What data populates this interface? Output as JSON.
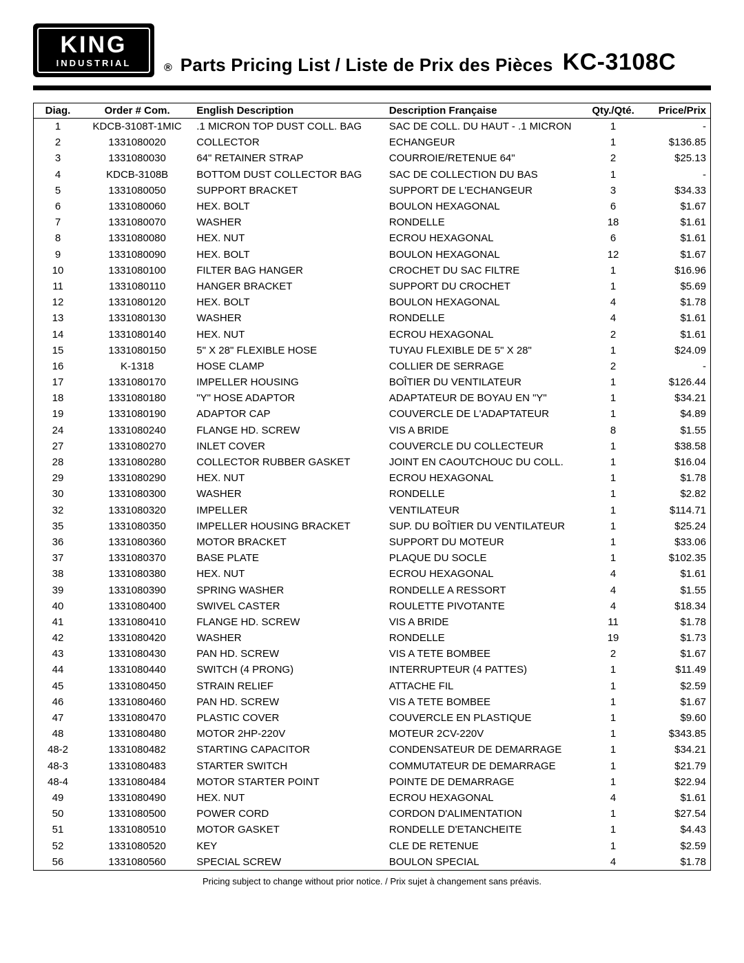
{
  "logo": {
    "line1": "KING",
    "line2": "INDUSTRIAL"
  },
  "header": {
    "registered": "®",
    "title": "Parts Pricing List / Liste de Prix des Pièces",
    "model": "KC-3108C"
  },
  "table": {
    "columns": {
      "diag": "Diag.",
      "order": "Order # Com.",
      "en": "English Description",
      "fr": "Description Française",
      "qty": "Qty./Qté.",
      "price": "Price/Prix"
    },
    "rows": [
      {
        "diag": "1",
        "order": "KDCB-3108T-1MIC",
        "en": ".1 MICRON TOP DUST COLL.  BAG",
        "fr": "SAC DE COLL. DU HAUT - .1 MICRON",
        "qty": "1",
        "price": "-"
      },
      {
        "diag": "2",
        "order": "1331080020",
        "en": "COLLECTOR",
        "fr": "ECHANGEUR",
        "qty": "1",
        "price": "$136.85"
      },
      {
        "diag": "3",
        "order": "1331080030",
        "en": "64\" RETAINER STRAP",
        "fr": "COURROIE/RETENUE 64\"",
        "qty": "2",
        "price": "$25.13"
      },
      {
        "diag": "4",
        "order": "KDCB-3108B",
        "en": "BOTTOM DUST COLLECTOR BAG",
        "fr": "SAC DE COLLECTION DU BAS",
        "qty": "1",
        "price": "-"
      },
      {
        "diag": "5",
        "order": "1331080050",
        "en": "SUPPORT BRACKET",
        "fr": "SUPPORT DE L'ECHANGEUR",
        "qty": "3",
        "price": "$34.33"
      },
      {
        "diag": "6",
        "order": "1331080060",
        "en": "HEX. BOLT",
        "fr": "BOULON HEXAGONAL",
        "qty": "6",
        "price": "$1.67"
      },
      {
        "diag": "7",
        "order": "1331080070",
        "en": "WASHER",
        "fr": "RONDELLE",
        "qty": "18",
        "price": "$1.61"
      },
      {
        "diag": "8",
        "order": "1331080080",
        "en": "HEX. NUT",
        "fr": "ECROU HEXAGONAL",
        "qty": "6",
        "price": "$1.61"
      },
      {
        "diag": "9",
        "order": "1331080090",
        "en": "HEX. BOLT",
        "fr": "BOULON HEXAGONAL",
        "qty": "12",
        "price": "$1.67"
      },
      {
        "diag": "10",
        "order": "1331080100",
        "en": "FILTER BAG HANGER",
        "fr": "CROCHET DU SAC FILTRE",
        "qty": "1",
        "price": "$16.96"
      },
      {
        "diag": "11",
        "order": "1331080110",
        "en": "HANGER BRACKET",
        "fr": "SUPPORT DU CROCHET",
        "qty": "1",
        "price": "$5.69"
      },
      {
        "diag": "12",
        "order": "1331080120",
        "en": "HEX. BOLT",
        "fr": "BOULON HEXAGONAL",
        "qty": "4",
        "price": "$1.78"
      },
      {
        "diag": "13",
        "order": "1331080130",
        "en": "WASHER",
        "fr": "RONDELLE",
        "qty": "4",
        "price": "$1.61"
      },
      {
        "diag": "14",
        "order": "1331080140",
        "en": "HEX. NUT",
        "fr": "ECROU HEXAGONAL",
        "qty": "2",
        "price": "$1.61"
      },
      {
        "diag": "15",
        "order": "1331080150",
        "en": "5\" X 28\" FLEXIBLE HOSE",
        "fr": "TUYAU FLEXIBLE DE 5\" X 28\"",
        "qty": "1",
        "price": "$24.09"
      },
      {
        "diag": "16",
        "order": "K-1318",
        "en": "HOSE CLAMP",
        "fr": "COLLIER DE SERRAGE",
        "qty": "2",
        "price": "-"
      },
      {
        "diag": "17",
        "order": "1331080170",
        "en": "IMPELLER HOUSING",
        "fr": "BOÎTIER DU VENTILATEUR",
        "qty": "1",
        "price": "$126.44"
      },
      {
        "diag": "18",
        "order": "1331080180",
        "en": "\"Y\" HOSE ADAPTOR",
        "fr": "ADAPTATEUR DE BOYAU EN \"Y\"",
        "qty": "1",
        "price": "$34.21"
      },
      {
        "diag": "19",
        "order": "1331080190",
        "en": "ADAPTOR CAP",
        "fr": "COUVERCLE DE L'ADAPTATEUR",
        "qty": "1",
        "price": "$4.89"
      },
      {
        "diag": "24",
        "order": "1331080240",
        "en": "FLANGE HD. SCREW",
        "fr": "VIS A BRIDE",
        "qty": "8",
        "price": "$1.55"
      },
      {
        "diag": "27",
        "order": "1331080270",
        "en": "INLET COVER",
        "fr": "COUVERCLE DU COLLECTEUR",
        "qty": "1",
        "price": "$38.58"
      },
      {
        "diag": "28",
        "order": "1331080280",
        "en": "COLLECTOR RUBBER GASKET",
        "fr": "JOINT EN CAOUTCHOUC DU COLL.",
        "qty": "1",
        "price": "$16.04"
      },
      {
        "diag": "29",
        "order": "1331080290",
        "en": "HEX. NUT",
        "fr": "ECROU HEXAGONAL",
        "qty": "1",
        "price": "$1.78"
      },
      {
        "diag": "30",
        "order": "1331080300",
        "en": "WASHER",
        "fr": "RONDELLE",
        "qty": "1",
        "price": "$2.82"
      },
      {
        "diag": "32",
        "order": "1331080320",
        "en": "IMPELLER",
        "fr": "VENTILATEUR",
        "qty": "1",
        "price": "$114.71"
      },
      {
        "diag": "35",
        "order": "1331080350",
        "en": "IMPELLER HOUSING BRACKET",
        "fr": "SUP. DU BOÎTIER DU VENTILATEUR",
        "qty": "1",
        "price": "$25.24"
      },
      {
        "diag": "36",
        "order": "1331080360",
        "en": "MOTOR BRACKET",
        "fr": "SUPPORT DU MOTEUR",
        "qty": "1",
        "price": "$33.06"
      },
      {
        "diag": "37",
        "order": "1331080370",
        "en": "BASE PLATE",
        "fr": "PLAQUE DU SOCLE",
        "qty": "1",
        "price": "$102.35"
      },
      {
        "diag": "38",
        "order": "1331080380",
        "en": "HEX. NUT",
        "fr": "ECROU HEXAGONAL",
        "qty": "4",
        "price": "$1.61"
      },
      {
        "diag": "39",
        "order": "1331080390",
        "en": "SPRING WASHER",
        "fr": "RONDELLE A RESSORT",
        "qty": "4",
        "price": "$1.55"
      },
      {
        "diag": "40",
        "order": "1331080400",
        "en": "SWIVEL CASTER",
        "fr": "ROULETTE PIVOTANTE",
        "qty": "4",
        "price": "$18.34"
      },
      {
        "diag": "41",
        "order": "1331080410",
        "en": "FLANGE HD. SCREW",
        "fr": "VIS A BRIDE",
        "qty": "11",
        "price": "$1.78"
      },
      {
        "diag": "42",
        "order": "1331080420",
        "en": "WASHER",
        "fr": "RONDELLE",
        "qty": "19",
        "price": "$1.73"
      },
      {
        "diag": "43",
        "order": "1331080430",
        "en": "PAN HD. SCREW",
        "fr": "VIS A TETE BOMBEE",
        "qty": "2",
        "price": "$1.67"
      },
      {
        "diag": "44",
        "order": "1331080440",
        "en": "SWITCH (4 PRONG)",
        "fr": "INTERRUPTEUR (4 PATTES)",
        "qty": "1",
        "price": "$11.49"
      },
      {
        "diag": "45",
        "order": "1331080450",
        "en": "STRAIN RELIEF",
        "fr": "ATTACHE FIL",
        "qty": "1",
        "price": "$2.59"
      },
      {
        "diag": "46",
        "order": "1331080460",
        "en": "PAN HD. SCREW",
        "fr": "VIS A TETE BOMBEE",
        "qty": "1",
        "price": "$1.67"
      },
      {
        "diag": "47",
        "order": "1331080470",
        "en": "PLASTIC COVER",
        "fr": "COUVERCLE EN PLASTIQUE",
        "qty": "1",
        "price": "$9.60"
      },
      {
        "diag": "48",
        "order": "1331080480",
        "en": "MOTOR 2HP-220V",
        "fr": "MOTEUR 2CV-220V",
        "qty": "1",
        "price": "$343.85"
      },
      {
        "diag": "48-2",
        "order": "1331080482",
        "en": "STARTING CAPACITOR",
        "fr": "CONDENSATEUR DE DEMARRAGE",
        "qty": "1",
        "price": "$34.21"
      },
      {
        "diag": "48-3",
        "order": "1331080483",
        "en": "STARTER SWITCH",
        "fr": "COMMUTATEUR DE DEMARRAGE",
        "qty": "1",
        "price": "$21.79"
      },
      {
        "diag": "48-4",
        "order": "1331080484",
        "en": "MOTOR STARTER POINT",
        "fr": "POINTE DE DEMARRAGE",
        "qty": "1",
        "price": "$22.94"
      },
      {
        "diag": "49",
        "order": "1331080490",
        "en": "HEX. NUT",
        "fr": "ECROU HEXAGONAL",
        "qty": "4",
        "price": "$1.61"
      },
      {
        "diag": "50",
        "order": "1331080500",
        "en": "POWER CORD",
        "fr": "CORDON D'ALIMENTATION",
        "qty": "1",
        "price": "$27.54"
      },
      {
        "diag": "51",
        "order": "1331080510",
        "en": "MOTOR GASKET",
        "fr": "RONDELLE D'ETANCHEITE",
        "qty": "1",
        "price": "$4.43"
      },
      {
        "diag": "52",
        "order": "1331080520",
        "en": "KEY",
        "fr": "CLE DE RETENUE",
        "qty": "1",
        "price": "$2.59"
      },
      {
        "diag": "56",
        "order": "1331080560",
        "en": "SPECIAL SCREW",
        "fr": "BOULON SPECIAL",
        "qty": "4",
        "price": "$1.78"
      }
    ]
  },
  "footnote": "Pricing subject to change without prior notice. / Prix sujet à changement sans préavis."
}
